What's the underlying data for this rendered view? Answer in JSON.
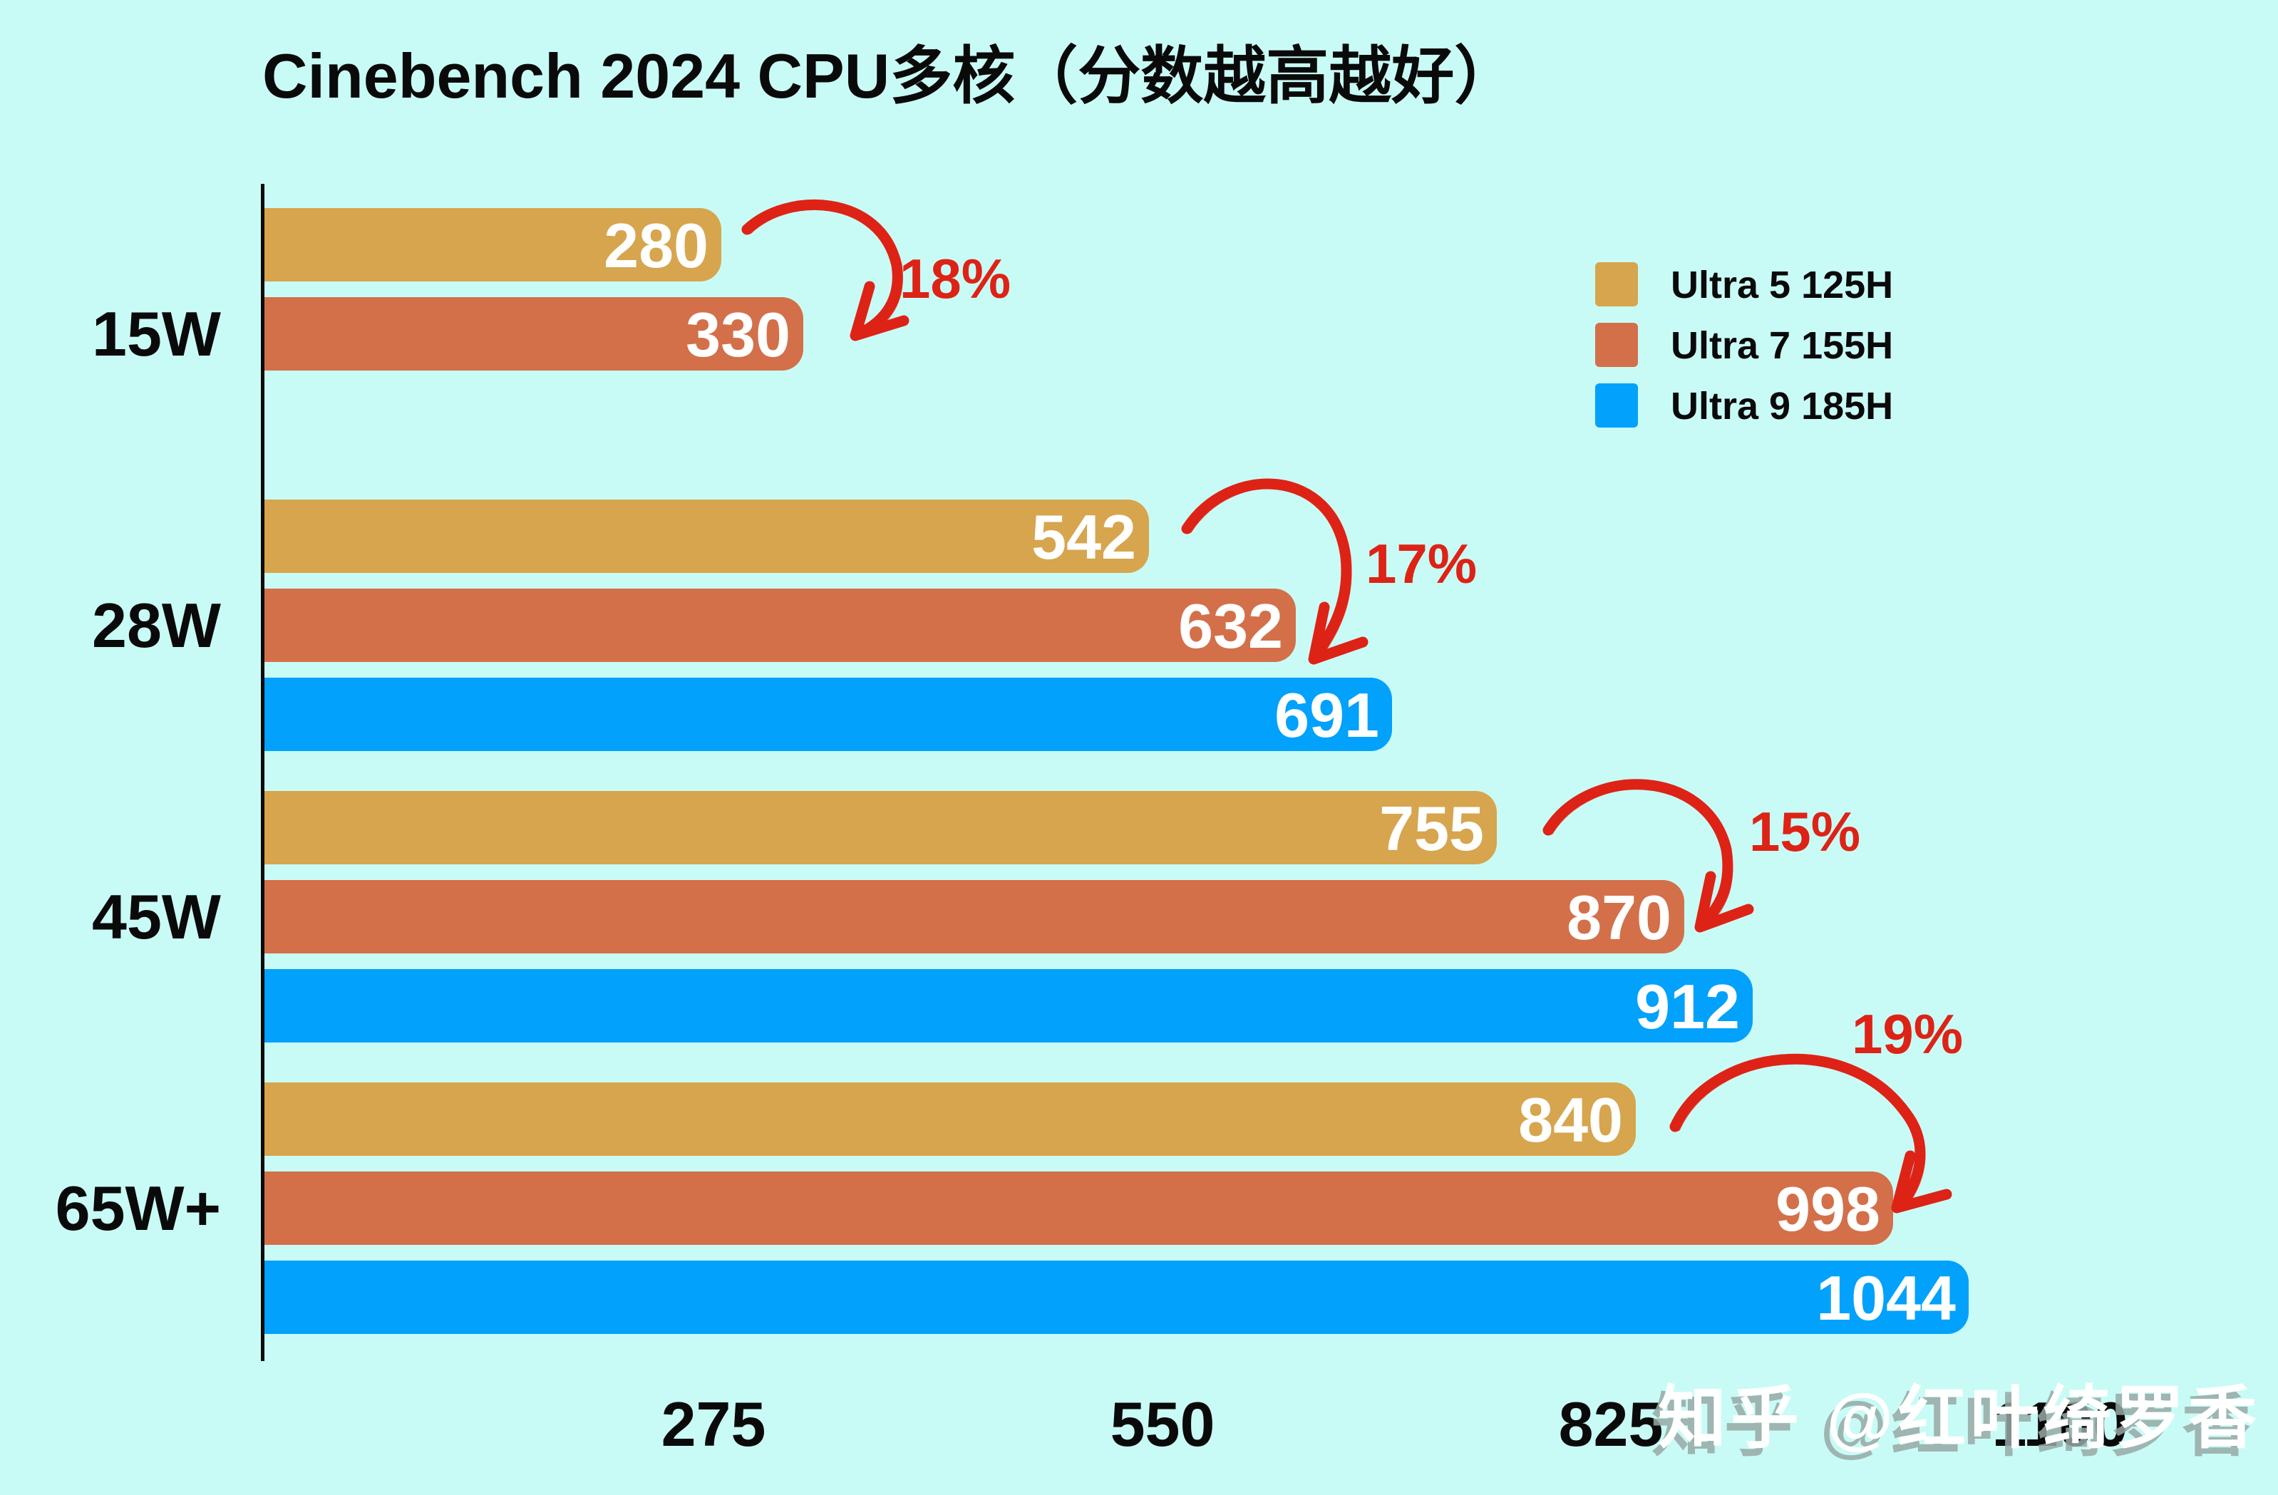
{
  "title": "Cinebench 2024 CPU多核（分数越高越好）",
  "watermark": "知乎 @红叶绮罗香",
  "colors": {
    "background": "#c9fbf6",
    "gold": "#d6a54e",
    "orange": "#d3704a",
    "blue": "#01a1fc",
    "annotation_red": "#dd2316",
    "axis_black": "#0a0a0a",
    "value_text": "#ffffff"
  },
  "legend": {
    "items": [
      {
        "label": "Ultra 5 125H",
        "color": "gold"
      },
      {
        "label": "Ultra 7 155H",
        "color": "orange"
      },
      {
        "label": "Ultra 9 185H",
        "color": "blue"
      }
    ]
  },
  "chart_data": {
    "type": "bar",
    "orientation": "horizontal",
    "title": "Cinebench 2024 CPU多核（分数越高越好）",
    "categories": [
      "15W",
      "28W",
      "45W",
      "65W+"
    ],
    "series": [
      {
        "name": "Ultra 5 125H",
        "color": "gold",
        "values": [
          280,
          542,
          755,
          840
        ]
      },
      {
        "name": "Ultra 7 155H",
        "color": "orange",
        "values": [
          330,
          632,
          870,
          998
        ]
      },
      {
        "name": "Ultra 9 185H",
        "color": "blue",
        "values": [
          null,
          691,
          912,
          1044
        ]
      }
    ],
    "xticks": [
      275,
      550,
      825,
      1100
    ],
    "xlim": [
      0,
      1100
    ],
    "grid": false,
    "legend_position": "upper right",
    "annotations": [
      {
        "category": "15W",
        "text": "18%"
      },
      {
        "category": "28W",
        "text": "17%"
      },
      {
        "category": "45W",
        "text": "15%"
      },
      {
        "category": "65W+",
        "text": "19%"
      }
    ]
  }
}
